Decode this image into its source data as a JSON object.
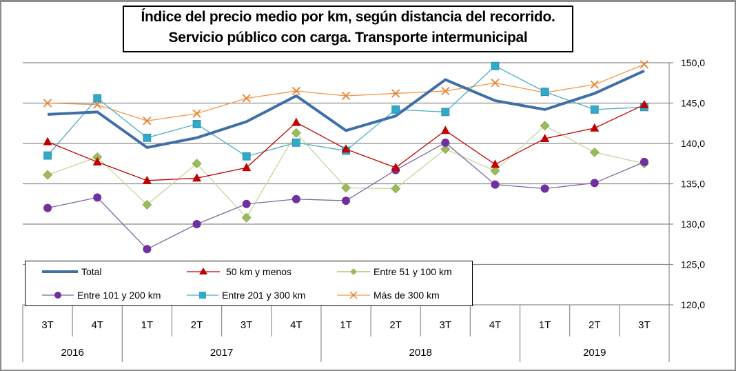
{
  "chart_data": {
    "type": "line",
    "title": [
      "Índice del precio medio por km, según distancia del recorrido.",
      "Servicio público con carga. Transporte intermunicipal"
    ],
    "xlabel": "",
    "ylabel": "",
    "ylim": [
      120,
      150
    ],
    "yticks": [
      120,
      125,
      130,
      135,
      140,
      145,
      150
    ],
    "ytick_labels": [
      "120,0",
      "125,0",
      "130,0",
      "135,0",
      "140,0",
      "145,0",
      "150,0"
    ],
    "y_axis_position": "right",
    "grid": true,
    "legend_position": "bottom-left",
    "categories": [
      "3T",
      "4T",
      "1T",
      "2T",
      "3T",
      "4T",
      "1T",
      "2T",
      "3T",
      "4T",
      "1T",
      "2T",
      "3T"
    ],
    "category_groups": [
      {
        "label": "2016",
        "span": 2
      },
      {
        "label": "2017",
        "span": 4
      },
      {
        "label": "2018",
        "span": 4
      },
      {
        "label": "2019",
        "span": 3
      }
    ],
    "series": [
      {
        "name": "Total",
        "color": "#3f6fa8",
        "marker": "none",
        "width": "thick",
        "values": [
          143.6,
          143.9,
          139.5,
          140.7,
          142.7,
          145.9,
          141.6,
          143.4,
          147.9,
          145.3,
          144.2,
          146.2,
          149.0
        ]
      },
      {
        "name": "50 km y menos",
        "color": "#c00000",
        "marker": "triangle",
        "values": [
          140.2,
          137.7,
          135.4,
          135.7,
          137.0,
          142.6,
          139.3,
          137.0,
          141.6,
          137.4,
          140.6,
          141.9,
          144.8
        ]
      },
      {
        "name": "Entre 51 y 100 km",
        "color": "#9bbb59",
        "line_color": "#c4d79b",
        "marker": "diamond",
        "values": [
          136.1,
          138.3,
          132.4,
          137.5,
          130.8,
          141.3,
          134.5,
          134.4,
          139.3,
          136.6,
          142.2,
          138.9,
          137.5
        ]
      },
      {
        "name": "Entre 101 y 200 km",
        "color": "#7030a0",
        "line_color": "#8064a2",
        "marker": "circle",
        "values": [
          132.0,
          133.3,
          126.9,
          130.0,
          132.5,
          133.1,
          132.9,
          136.7,
          140.1,
          134.9,
          134.4,
          135.1,
          137.7
        ]
      },
      {
        "name": "Entre 201 y 300 km",
        "color": "#31a9c9",
        "line_color": "#4bacc6",
        "marker": "square",
        "values": [
          138.5,
          145.6,
          140.7,
          142.4,
          138.4,
          140.1,
          139.1,
          144.2,
          143.9,
          149.6,
          146.4,
          144.2,
          144.5
        ]
      },
      {
        "name": "Más de 300 km",
        "color": "#e8802f",
        "line_color": "#f79646",
        "marker": "x",
        "values": [
          145.0,
          144.8,
          142.8,
          143.7,
          145.6,
          146.5,
          145.9,
          146.2,
          146.5,
          147.5,
          146.3,
          147.3,
          149.8
        ]
      }
    ]
  }
}
